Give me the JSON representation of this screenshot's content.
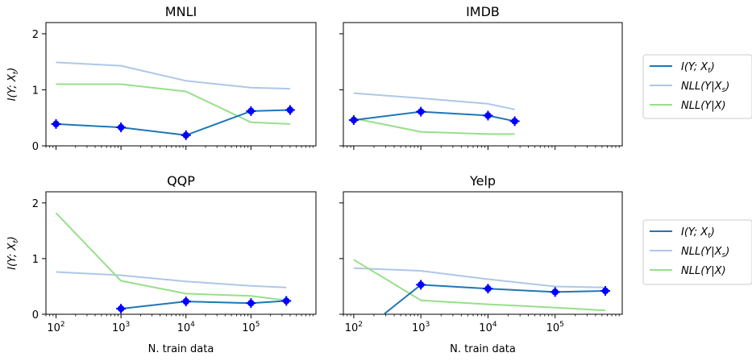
{
  "chart_data": [
    {
      "type": "line",
      "title": "MNLI",
      "xlabel": "",
      "ylabel": "I(Y; X_t)",
      "xscale": "log",
      "xlim": [
        70,
        1000000
      ],
      "ylim": [
        0,
        2.2
      ],
      "yticks": [
        0,
        1,
        2
      ],
      "grid": false,
      "legend": "none",
      "series": [
        {
          "name": "I(Y; X_t)",
          "color": "#1f77b4",
          "markers": true,
          "x": [
            100,
            1000,
            10000,
            100000,
            400000
          ],
          "y": [
            0.39,
            0.33,
            0.19,
            0.62,
            0.64
          ]
        },
        {
          "name": "NLL(Y|X_s)",
          "color": "#aec7e8",
          "markers": false,
          "x": [
            100,
            1000,
            10000,
            100000,
            400000
          ],
          "y": [
            1.49,
            1.43,
            1.16,
            1.04,
            1.02
          ]
        },
        {
          "name": "NLL(Y|X)",
          "color": "#98df8a",
          "markers": false,
          "x": [
            100,
            1000,
            10000,
            100000,
            400000
          ],
          "y": [
            1.1,
            1.1,
            0.97,
            0.42,
            0.39
          ]
        }
      ]
    },
    {
      "type": "line",
      "title": "IMDB",
      "xlabel": "",
      "ylabel": "",
      "xscale": "log",
      "xlim": [
        70,
        1000000
      ],
      "ylim": [
        0,
        2.2
      ],
      "grid": false,
      "legend": "right",
      "series": [
        {
          "name": "I(Y; X_t)",
          "color": "#1f77b4",
          "markers": true,
          "x": [
            100,
            1000,
            10000,
            25000
          ],
          "y": [
            0.46,
            0.61,
            0.54,
            0.44
          ]
        },
        {
          "name": "NLL(Y|X_s)",
          "color": "#aec7e8",
          "markers": false,
          "x": [
            100,
            1000,
            10000,
            25000
          ],
          "y": [
            0.94,
            0.85,
            0.75,
            0.65
          ]
        },
        {
          "name": "NLL(Y|X)",
          "color": "#98df8a",
          "markers": false,
          "x": [
            100,
            1000,
            10000,
            25000
          ],
          "y": [
            0.49,
            0.25,
            0.21,
            0.21
          ]
        }
      ]
    },
    {
      "type": "line",
      "title": "QQP",
      "xlabel": "N. train data",
      "ylabel": "I(Y; X_t)",
      "xscale": "log",
      "xlim": [
        70,
        1000000
      ],
      "ylim": [
        0,
        2.2
      ],
      "yticks": [
        0,
        1,
        2
      ],
      "grid": false,
      "legend": "none",
      "series": [
        {
          "name": "I(Y; X_t)",
          "color": "#1f77b4",
          "markers": true,
          "x": [
            1000,
            10000,
            100000,
            350000
          ],
          "y": [
            0.1,
            0.23,
            0.2,
            0.24
          ]
        },
        {
          "name": "NLL(Y|X_s)",
          "color": "#aec7e8",
          "markers": false,
          "x": [
            100,
            1000,
            10000,
            100000,
            350000
          ],
          "y": [
            0.76,
            0.7,
            0.59,
            0.51,
            0.48
          ]
        },
        {
          "name": "NLL(Y|X)",
          "color": "#98df8a",
          "markers": false,
          "x": [
            100,
            1000,
            10000,
            100000,
            350000
          ],
          "y": [
            1.82,
            0.6,
            0.37,
            0.33,
            0.25
          ]
        }
      ]
    },
    {
      "type": "line",
      "title": "Yelp",
      "xlabel": "N. train data",
      "ylabel": "",
      "xscale": "log",
      "xlim": [
        70,
        1000000
      ],
      "ylim": [
        0,
        2.2
      ],
      "grid": false,
      "legend": "right",
      "series": [
        {
          "name": "I(Y; X_t)",
          "color": "#1f77b4",
          "markers": true,
          "x": [
            100,
            1000,
            10000,
            100000,
            560000
          ],
          "y": [
            -0.43,
            0.53,
            0.46,
            0.4,
            0.42
          ]
        },
        {
          "name": "NLL(Y|X_s)",
          "color": "#aec7e8",
          "markers": false,
          "x": [
            100,
            1000,
            10000,
            100000,
            560000
          ],
          "y": [
            0.83,
            0.78,
            0.63,
            0.5,
            0.48
          ]
        },
        {
          "name": "NLL(Y|X)",
          "color": "#98df8a",
          "markers": false,
          "x": [
            100,
            1000,
            10000,
            100000,
            560000
          ],
          "y": [
            0.98,
            0.25,
            0.18,
            0.12,
            0.07
          ]
        }
      ]
    }
  ],
  "xtick_values": [
    100,
    1000,
    10000,
    100000
  ],
  "xtick_exponents": [
    "2",
    "3",
    "4",
    "5"
  ],
  "xtick_base": "10",
  "ytick_labels": [
    "0",
    "1",
    "2"
  ],
  "legend_labels": [
    {
      "base": "I",
      "paren_open": "(Y; X",
      "sub": "t",
      "paren_close": ")"
    },
    {
      "base": "NLL",
      "paren_open": "(Y|X",
      "sub": "s",
      "paren_close": ")"
    },
    {
      "base": "NLL",
      "paren_open": "(Y|X",
      "sub": "",
      "paren_close": ")"
    }
  ],
  "ylabel_parts": {
    "base": "I",
    "paren_open": "(Y; X",
    "sub": "t",
    "paren_close": ")"
  },
  "marker_color": "#0000ff"
}
